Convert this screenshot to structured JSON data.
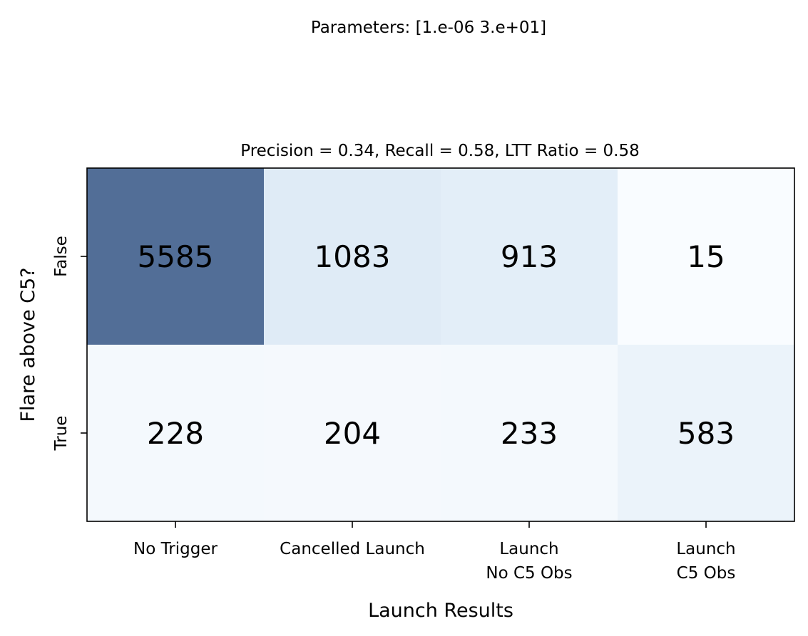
{
  "suptitle": "Parameters: [1.e-06 3.e+01]",
  "chart_data": {
    "type": "heatmap",
    "title": "Precision = 0.34, Recall = 0.58, LTT Ratio = 0.58",
    "xlabel": "Launch Results",
    "ylabel": "Flare above C5?",
    "x_categories": [
      "No Trigger",
      "Cancelled Launch",
      "Launch\nNo C5 Obs",
      "Launch\nC5 Obs"
    ],
    "y_categories": [
      "False",
      "True"
    ],
    "values": [
      [
        5585,
        1083,
        913,
        15
      ],
      [
        228,
        204,
        233,
        583
      ]
    ],
    "colormap": "Blues",
    "alpha": 0.7,
    "grid": false,
    "legend": "none"
  }
}
